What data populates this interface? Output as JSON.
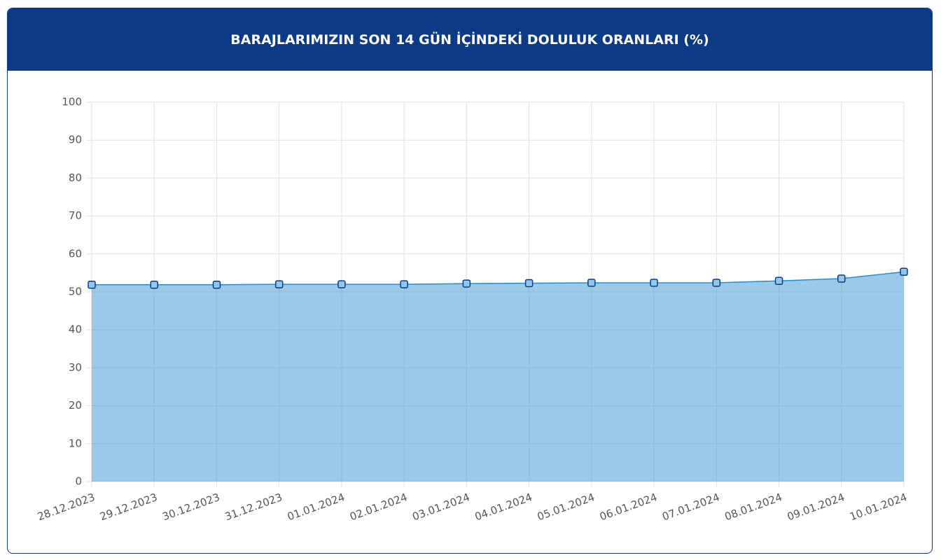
{
  "chart_data": {
    "type": "area",
    "title": "BARAJLARIMIZIN SON 14 GÜN İÇİNDEKİ DOLULUK ORANLARI (%)",
    "categories": [
      "28.12.2023",
      "29.12.2023",
      "30.12.2023",
      "31.12.2023",
      "01.01.2024",
      "02.01.2024",
      "03.01.2024",
      "04.01.2024",
      "05.01.2024",
      "06.01.2024",
      "07.01.2024",
      "08.01.2024",
      "09.01.2024",
      "10.01.2024"
    ],
    "values": [
      51.9,
      51.9,
      51.9,
      52.0,
      52.0,
      52.0,
      52.2,
      52.3,
      52.4,
      52.4,
      52.4,
      52.9,
      53.5,
      55.3
    ],
    "color": "#2b8ccb",
    "ylim": [
      0,
      100
    ],
    "yticks": [
      0,
      10,
      20,
      30,
      40,
      50,
      60,
      70,
      80,
      90,
      100
    ],
    "grid": true
  }
}
